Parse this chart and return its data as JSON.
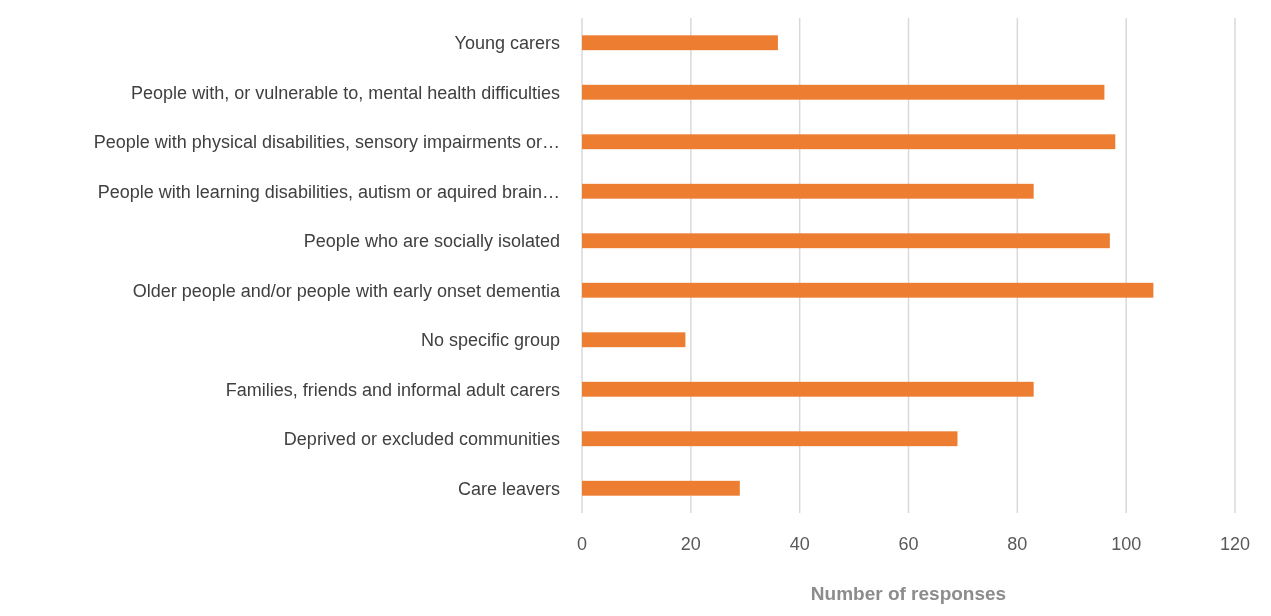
{
  "chart_data": {
    "type": "bar",
    "orientation": "horizontal",
    "xlabel": "Number of responses",
    "categories": [
      "Young carers",
      "People with, or vulnerable to, mental health difficulties",
      "People with physical disabilities, sensory impairments or…",
      "People with learning disabilities, autism or aquired brain…",
      "People who are socially isolated",
      "Older people and/or people with early onset dementia",
      "No specific group",
      "Families, friends and informal adult carers",
      "Deprived or excluded communities",
      "Care leavers"
    ],
    "values": [
      36,
      96,
      98,
      83,
      97,
      105,
      19,
      83,
      69,
      29
    ],
    "color": "#ed7d31",
    "xlim": [
      0,
      120
    ],
    "xticks": [
      0,
      20,
      40,
      60,
      80,
      100,
      120
    ],
    "grid": "x"
  }
}
